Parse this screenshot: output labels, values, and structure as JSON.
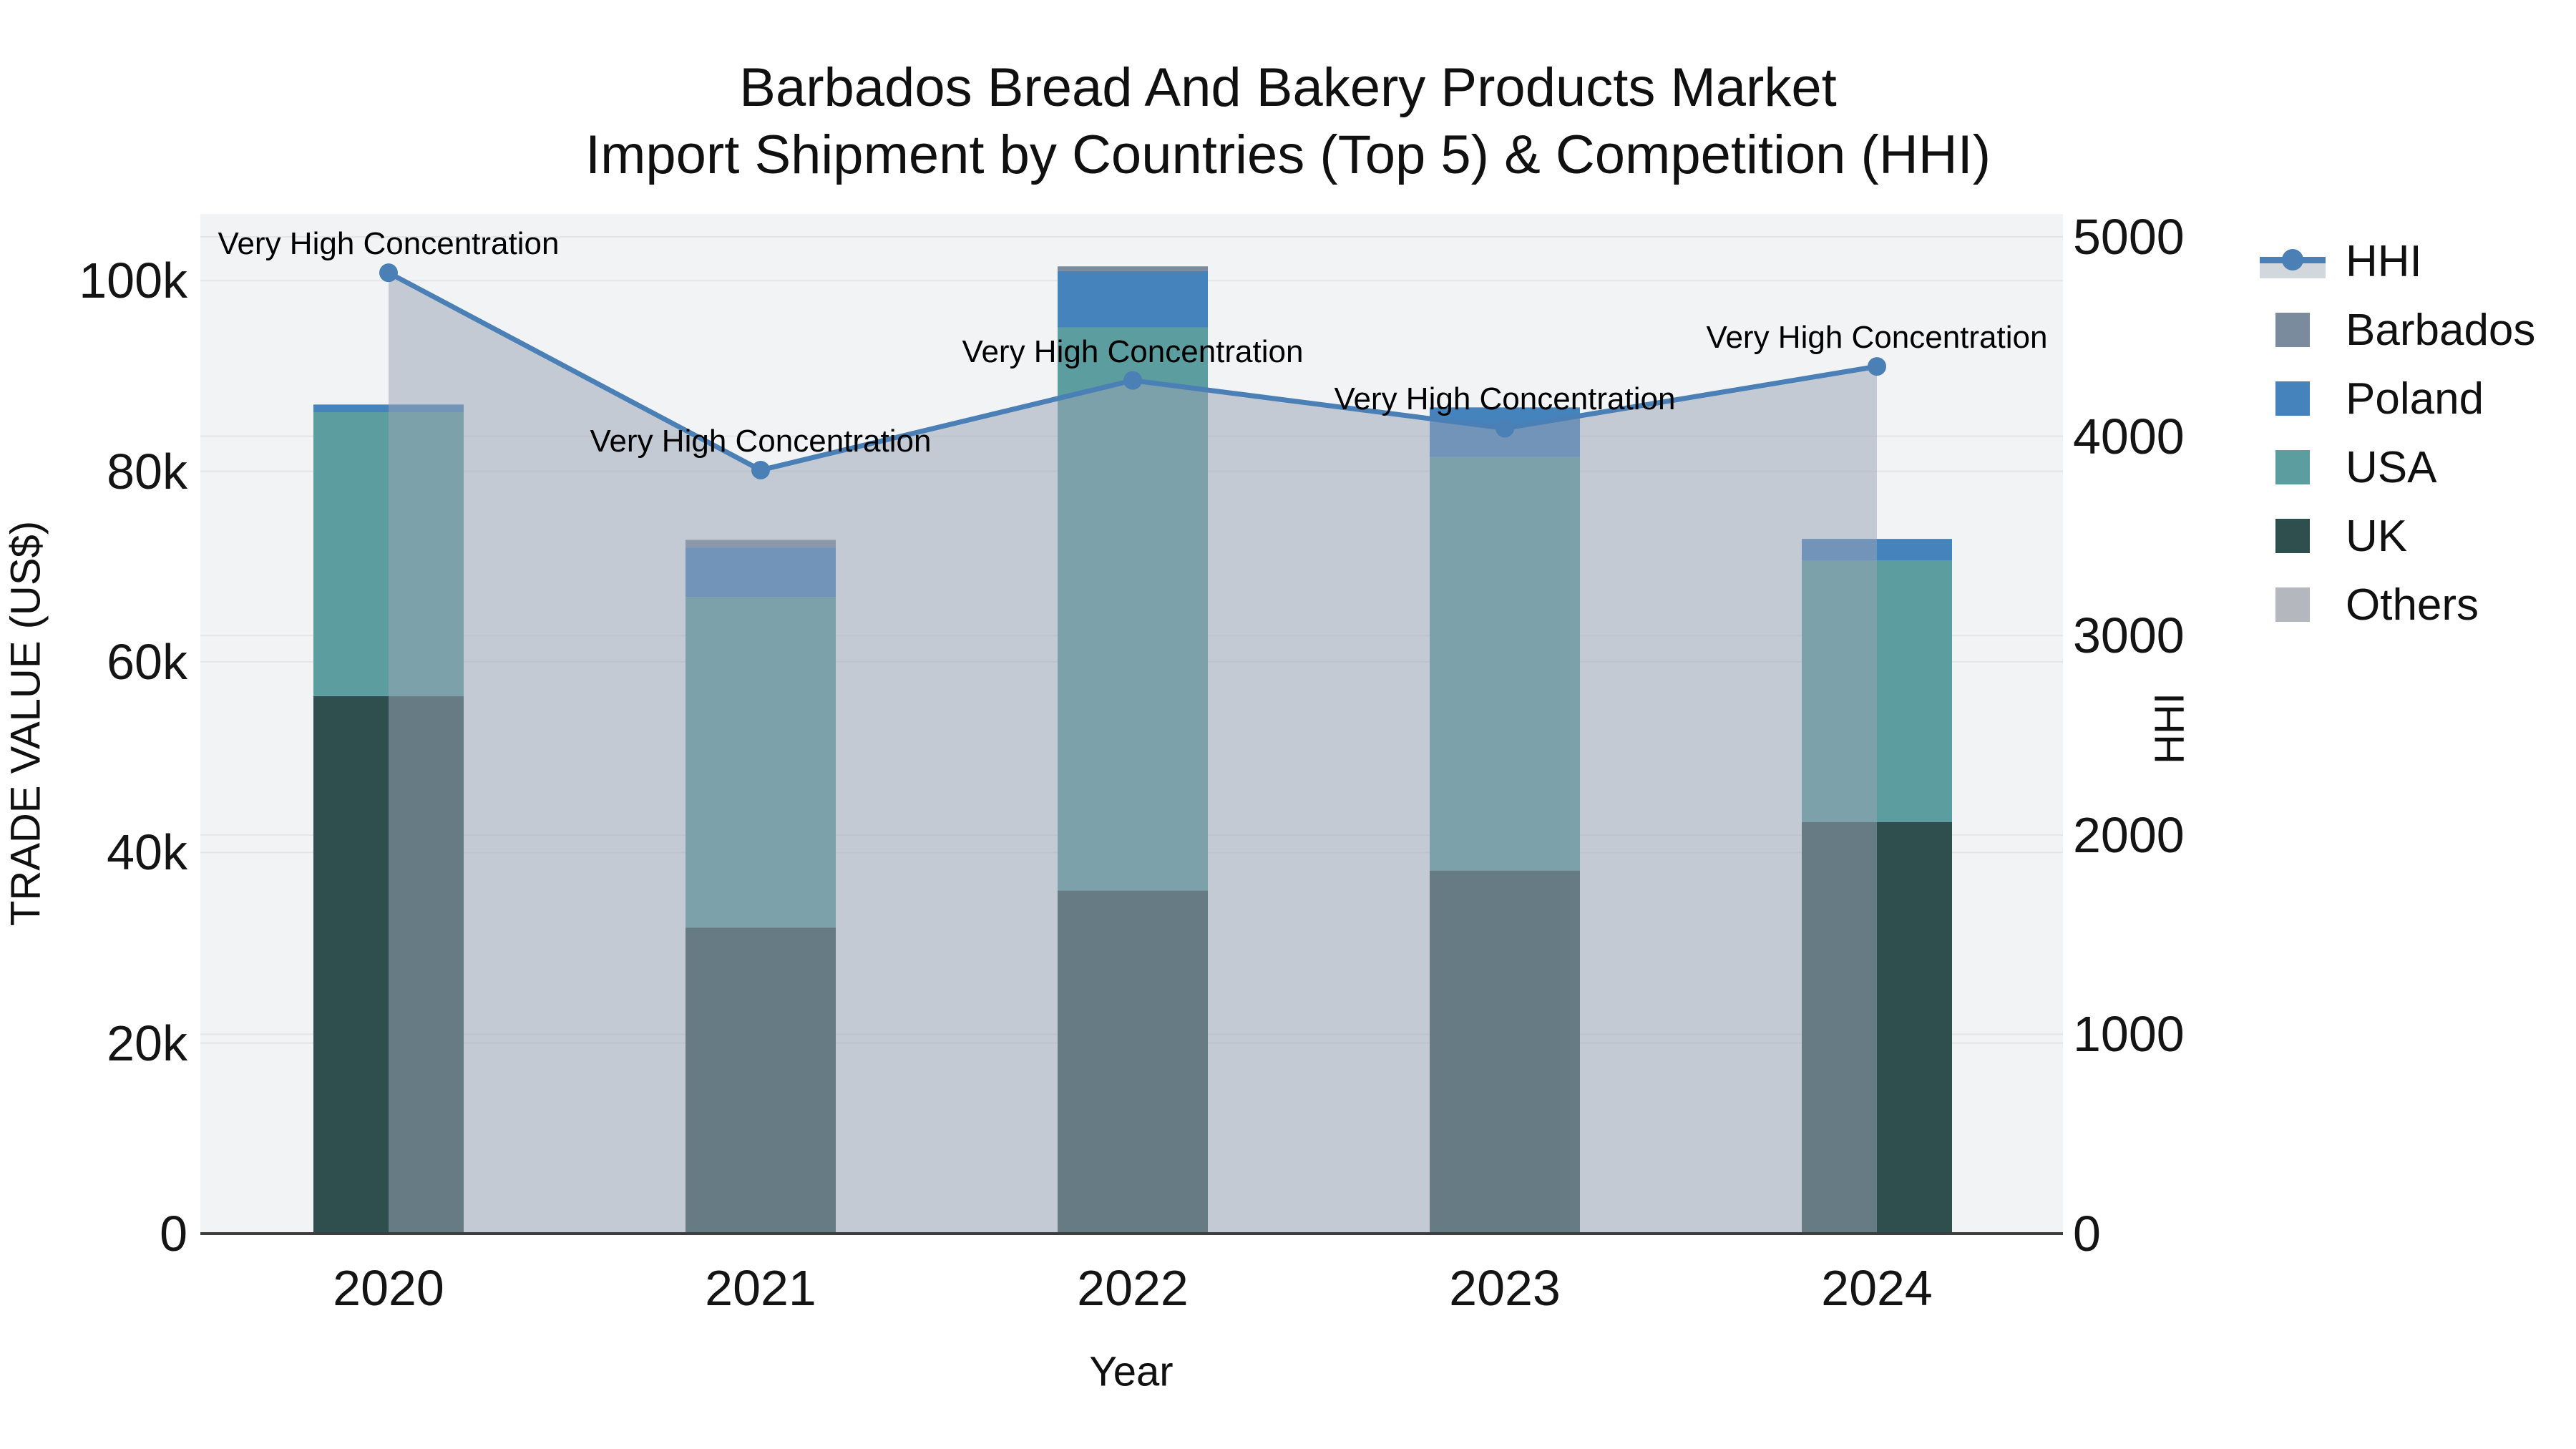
{
  "title": {
    "line1": "Barbados Bread And Bakery Products Market",
    "line2": "Import Shipment by Countries (Top 5) & Competition (HHI)"
  },
  "legend": {
    "items": [
      {
        "label": "HHI",
        "type": "line",
        "color": "#4A80B6"
      },
      {
        "label": "Barbados",
        "type": "square",
        "color": "#7A8B9E"
      },
      {
        "label": "Poland",
        "type": "square",
        "color": "#4583BC"
      },
      {
        "label": "USA",
        "type": "square",
        "color": "#5C9DA0"
      },
      {
        "label": "UK",
        "type": "square",
        "color": "#2F4F4F"
      },
      {
        "label": "Others",
        "type": "square",
        "color": "#B4B8BE"
      }
    ]
  },
  "chart_data": {
    "type": "bar-line-combo",
    "categories": [
      "2020",
      "2021",
      "2022",
      "2023",
      "2024"
    ],
    "series": [
      {
        "name": "UK",
        "color": "#2F4F4F",
        "values": [
          56400,
          32100,
          36000,
          38100,
          43200
        ]
      },
      {
        "name": "USA",
        "color": "#5C9DA0",
        "values": [
          29800,
          34700,
          59100,
          43400,
          27400
        ]
      },
      {
        "name": "Poland",
        "color": "#4583BC",
        "values": [
          800,
          5200,
          5900,
          5200,
          2300
        ]
      },
      {
        "name": "Barbados",
        "color": "#7A8B9E",
        "values": [
          0,
          800,
          500,
          0,
          0
        ]
      },
      {
        "name": "Others",
        "color": "#B4B8BE",
        "values": [
          0,
          0,
          0,
          0,
          0
        ]
      }
    ],
    "hhi_line": {
      "name": "HHI",
      "color": "#4A80B6",
      "area_fill": "rgba(154,164,181,0.52)",
      "values": [
        4820,
        3830,
        4280,
        4040,
        4350
      ]
    },
    "annotations": [
      "Very High Concentration",
      "Very High Concentration",
      "Very High Concentration",
      "Very High Concentration",
      "Very High Concentration"
    ],
    "left_axis": {
      "label": "TRADE VALUE (US$)",
      "tick_labels": [
        "0",
        "20k",
        "40k",
        "60k",
        "80k",
        "100k"
      ],
      "tick_values": [
        0,
        20000,
        40000,
        60000,
        80000,
        100000
      ],
      "range": [
        0,
        107000
      ]
    },
    "right_axis": {
      "label": "HHI",
      "tick_labels": [
        "0",
        "1000",
        "2000",
        "3000",
        "4000",
        "5000"
      ],
      "tick_values": [
        0,
        1000,
        2000,
        3000,
        4000,
        5000
      ],
      "range": [
        0,
        5115
      ]
    },
    "x_axis": {
      "label": "Year"
    },
    "style": {
      "plot_bg": "#F2F3F4",
      "gridline": "#E3E6E9",
      "axis_line": "#3D3D3D"
    }
  }
}
